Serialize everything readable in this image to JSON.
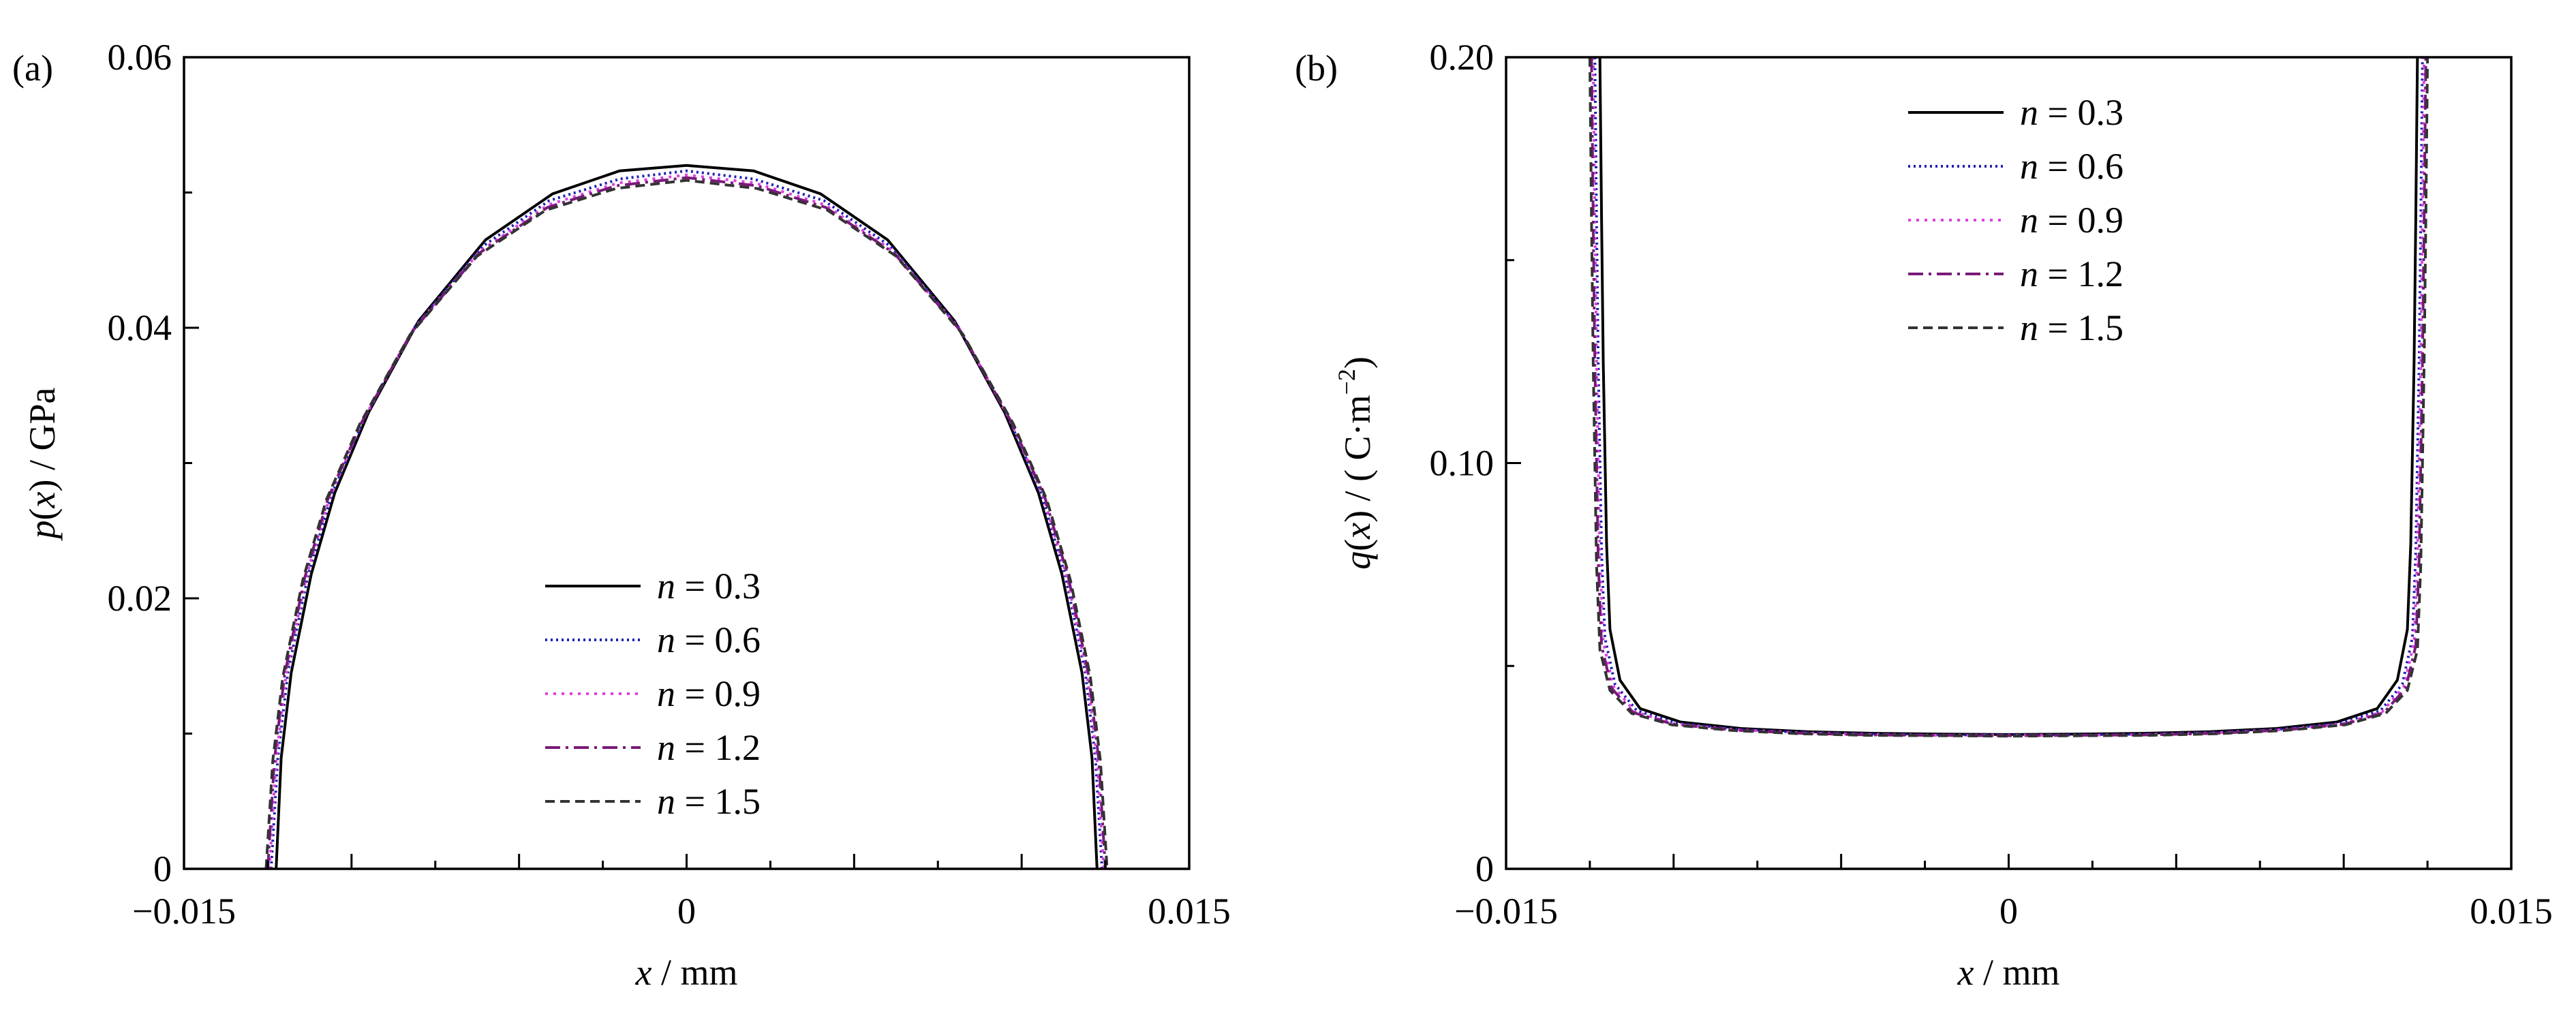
{
  "chart_data": [
    {
      "panel_label": "(a)",
      "type": "line",
      "xlabel": {
        "var": "x",
        "unit": " / mm"
      },
      "ylabel": {
        "var": "p(x)",
        "unit": " / GPa"
      },
      "xlim": [
        -0.015,
        0.015
      ],
      "ylim": [
        0,
        0.06
      ],
      "xticks": [
        -0.015,
        0,
        0.015
      ],
      "xtick_labels": [
        "−0.015",
        "0",
        "0.015"
      ],
      "yticks": [
        0,
        0.02,
        0.04,
        0.06
      ],
      "ytick_labels": [
        "0",
        "0.02",
        "0.04",
        "0.06"
      ],
      "legend_position": "lower-center",
      "series": [
        {
          "name": "n = 0.3",
          "label_var": "n",
          "label_value": " = 0.3",
          "color": "#000000",
          "dash": "none",
          "x": [
            -0.01225,
            -0.0121,
            -0.0118,
            -0.0112,
            -0.0105,
            -0.0095,
            -0.008,
            -0.006,
            -0.004,
            -0.002,
            0,
            0.002,
            0.004,
            0.006,
            0.008,
            0.0095,
            0.0105,
            0.0112,
            0.0118,
            0.0121,
            0.01225
          ],
          "y": [
            0,
            0.0082,
            0.0145,
            0.0218,
            0.0278,
            0.0337,
            0.0405,
            0.0465,
            0.0499,
            0.0516,
            0.052,
            0.0516,
            0.0499,
            0.0465,
            0.0405,
            0.0337,
            0.0278,
            0.0218,
            0.0145,
            0.0082,
            0
          ]
        },
        {
          "name": "n = 0.6",
          "label_var": "n",
          "label_value": " = 0.6",
          "color": "#1f1fb4",
          "dash": "3 5",
          "x": [
            -0.0124,
            -0.0122,
            -0.0119,
            -0.0113,
            -0.0106,
            -0.0096,
            -0.0081,
            -0.0061,
            -0.0041,
            -0.002,
            0,
            0.002,
            0.0041,
            0.0061,
            0.0081,
            0.0096,
            0.0106,
            0.0113,
            0.0119,
            0.0122,
            0.0124
          ],
          "y": [
            0,
            0.0082,
            0.0145,
            0.0217,
            0.0276,
            0.0334,
            0.0401,
            0.046,
            0.0494,
            0.051,
            0.0516,
            0.051,
            0.0494,
            0.046,
            0.0401,
            0.0334,
            0.0276,
            0.0217,
            0.0145,
            0.0082,
            0
          ]
        },
        {
          "name": "n = 0.9",
          "label_var": "n",
          "label_value": " = 0.9",
          "color": "#e040e0",
          "dash": "4 8",
          "x": [
            -0.01245,
            -0.01225,
            -0.01195,
            -0.01135,
            -0.01065,
            -0.00965,
            -0.00815,
            -0.00615,
            -0.00412,
            -0.00205,
            0,
            0.00205,
            0.00412,
            0.00615,
            0.00815,
            0.00965,
            0.01065,
            0.01135,
            0.01195,
            0.01225,
            0.01245
          ],
          "y": [
            0,
            0.0081,
            0.0144,
            0.0216,
            0.0275,
            0.0332,
            0.0399,
            0.0457,
            0.0491,
            0.0507,
            0.0513,
            0.0507,
            0.0491,
            0.0457,
            0.0399,
            0.0332,
            0.0275,
            0.0216,
            0.0144,
            0.0081,
            0
          ]
        },
        {
          "name": "n = 1.2",
          "label_var": "n",
          "label_value": " = 1.2",
          "color": "#7a1a7a",
          "dash": "22 8 4 8",
          "x": [
            -0.0125,
            -0.0123,
            -0.012,
            -0.0114,
            -0.0107,
            -0.0097,
            -0.0082,
            -0.0062,
            -0.00415,
            -0.0021,
            0,
            0.0021,
            0.00415,
            0.0062,
            0.0082,
            0.0097,
            0.0107,
            0.0114,
            0.012,
            0.0123,
            0.0125
          ],
          "y": [
            0,
            0.0081,
            0.0143,
            0.0215,
            0.0274,
            0.033,
            0.0397,
            0.0455,
            0.0489,
            0.0505,
            0.0511,
            0.0505,
            0.0489,
            0.0455,
            0.0397,
            0.033,
            0.0274,
            0.0215,
            0.0143,
            0.0081,
            0
          ]
        },
        {
          "name": "n = 1.5",
          "label_var": "n",
          "label_value": " = 1.5",
          "color": "#333333",
          "dash": "14 8",
          "x": [
            -0.01255,
            -0.01235,
            -0.01205,
            -0.01145,
            -0.01075,
            -0.00975,
            -0.00825,
            -0.00625,
            -0.0042,
            -0.0021,
            0,
            0.0021,
            0.0042,
            0.00625,
            0.00825,
            0.00975,
            0.01075,
            0.01145,
            0.01205,
            0.01235,
            0.01255
          ],
          "y": [
            0,
            0.008,
            0.0142,
            0.0214,
            0.0273,
            0.0329,
            0.0395,
            0.0453,
            0.0487,
            0.0503,
            0.0509,
            0.0503,
            0.0487,
            0.0453,
            0.0395,
            0.0329,
            0.0273,
            0.0214,
            0.0142,
            0.008,
            0
          ]
        }
      ]
    },
    {
      "panel_label": "(b)",
      "type": "line",
      "xlabel": {
        "var": "x",
        "unit": " / mm"
      },
      "ylabel": {
        "var": "q(x)",
        "unit": " / ( C·m",
        "sup": "−2",
        "tail": ")"
      },
      "xlim": [
        -0.015,
        0.015
      ],
      "ylim": [
        0,
        0.2
      ],
      "xticks": [
        -0.015,
        0,
        0.015
      ],
      "xtick_labels": [
        "−0.015",
        "0",
        "0.015"
      ],
      "yticks": [
        0,
        0.1,
        0.2
      ],
      "ytick_labels": [
        "0",
        "0.10",
        "0.20"
      ],
      "legend_position": "top-center",
      "series": [
        {
          "name": "n = 0.3",
          "label_var": "n",
          "label_value": " = 0.3",
          "color": "#000000",
          "dash": "none",
          "x": [
            -0.0122,
            -0.01215,
            -0.0121,
            -0.012,
            -0.0119,
            -0.0116,
            -0.011,
            -0.0098,
            -0.008,
            -0.006,
            -0.004,
            -0.002,
            0,
            0.002,
            0.004,
            0.006,
            0.008,
            0.0098,
            0.011,
            0.0116,
            0.0119,
            0.012,
            0.0121,
            0.01215,
            0.0122
          ],
          "y": [
            0.2,
            0.16,
            0.125,
            0.08,
            0.059,
            0.0465,
            0.0395,
            0.0362,
            0.0346,
            0.0338,
            0.0334,
            0.0332,
            0.0331,
            0.0332,
            0.0334,
            0.0338,
            0.0346,
            0.0362,
            0.0395,
            0.0465,
            0.059,
            0.08,
            0.125,
            0.16,
            0.2
          ]
        },
        {
          "name": "n = 0.6",
          "label_var": "n",
          "label_value": " = 0.6",
          "color": "#1f1fb4",
          "dash": "3 5",
          "x": [
            -0.01235,
            -0.0123,
            -0.01225,
            -0.01215,
            -0.01205,
            -0.01175,
            -0.0111,
            -0.0099,
            -0.0081,
            -0.0061,
            -0.0041,
            -0.002,
            0,
            0.002,
            0.0041,
            0.0061,
            0.0081,
            0.0099,
            0.0111,
            0.01175,
            0.01205,
            0.01215,
            0.01225,
            0.0123,
            0.01235
          ],
          "y": [
            0.2,
            0.16,
            0.125,
            0.078,
            0.057,
            0.0455,
            0.039,
            0.0359,
            0.0344,
            0.0336,
            0.0332,
            0.033,
            0.033,
            0.033,
            0.0332,
            0.0336,
            0.0344,
            0.0359,
            0.039,
            0.0455,
            0.057,
            0.078,
            0.125,
            0.16,
            0.2
          ]
        },
        {
          "name": "n = 0.9",
          "label_var": "n",
          "label_value": " = 0.9",
          "color": "#e040e0",
          "dash": "4 8",
          "x": [
            -0.0124,
            -0.01235,
            -0.0123,
            -0.0122,
            -0.0121,
            -0.0118,
            -0.01115,
            -0.00995,
            -0.00815,
            -0.00615,
            -0.00412,
            -0.00205,
            0,
            0.00205,
            0.00412,
            0.00615,
            0.00815,
            0.00995,
            0.01115,
            0.0118,
            0.0121,
            0.0122,
            0.0123,
            0.01235,
            0.0124
          ],
          "y": [
            0.2,
            0.16,
            0.125,
            0.077,
            0.056,
            0.045,
            0.0387,
            0.0357,
            0.0343,
            0.0335,
            0.0331,
            0.0329,
            0.0329,
            0.0329,
            0.0331,
            0.0335,
            0.0343,
            0.0357,
            0.0387,
            0.045,
            0.056,
            0.077,
            0.125,
            0.16,
            0.2
          ]
        },
        {
          "name": "n = 1.2",
          "label_var": "n",
          "label_value": " = 1.2",
          "color": "#7a1a7a",
          "dash": "22 8 4 8",
          "x": [
            -0.01245,
            -0.0124,
            -0.01235,
            -0.01225,
            -0.01215,
            -0.01185,
            -0.0112,
            -0.01,
            -0.0082,
            -0.0062,
            -0.00415,
            -0.0021,
            0,
            0.0021,
            0.00415,
            0.0062,
            0.0082,
            0.01,
            0.0112,
            0.01185,
            0.01215,
            0.01225,
            0.01235,
            0.0124,
            0.01245
          ],
          "y": [
            0.2,
            0.16,
            0.125,
            0.076,
            0.055,
            0.0445,
            0.0385,
            0.0356,
            0.0342,
            0.0334,
            0.033,
            0.0329,
            0.0328,
            0.0329,
            0.033,
            0.0334,
            0.0342,
            0.0356,
            0.0385,
            0.0445,
            0.055,
            0.076,
            0.125,
            0.16,
            0.2
          ]
        },
        {
          "name": "n = 1.5",
          "label_var": "n",
          "label_value": " = 1.5",
          "color": "#333333",
          "dash": "14 8",
          "x": [
            -0.0125,
            -0.01245,
            -0.0124,
            -0.0123,
            -0.0122,
            -0.0119,
            -0.01125,
            -0.01005,
            -0.00825,
            -0.00625,
            -0.0042,
            -0.0021,
            0,
            0.0021,
            0.0042,
            0.00625,
            0.00825,
            0.01005,
            0.01125,
            0.0119,
            0.0122,
            0.0123,
            0.0124,
            0.01245,
            0.0125
          ],
          "y": [
            0.2,
            0.16,
            0.125,
            0.075,
            0.054,
            0.044,
            0.0383,
            0.0355,
            0.0341,
            0.0333,
            0.0329,
            0.0328,
            0.0327,
            0.0328,
            0.0329,
            0.0333,
            0.0341,
            0.0355,
            0.0383,
            0.044,
            0.054,
            0.075,
            0.125,
            0.16,
            0.2
          ]
        }
      ]
    }
  ]
}
